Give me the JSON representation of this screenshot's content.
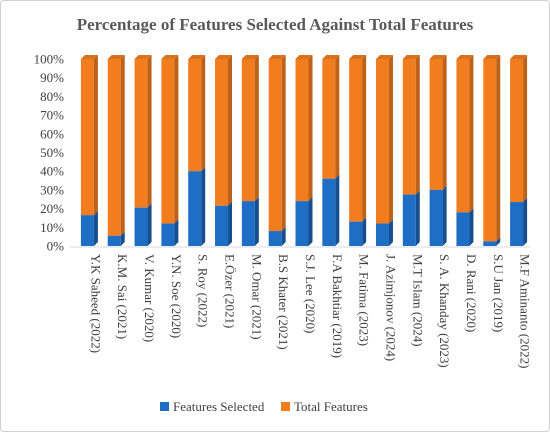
{
  "chart_data": {
    "type": "bar",
    "stacked": true,
    "title": "Percentage of Features Selected Against Total Features",
    "xlabel": "",
    "ylabel": "",
    "ylim": [
      0,
      100
    ],
    "y_ticks": [
      "0%",
      "10%",
      "20%",
      "30%",
      "40%",
      "50%",
      "60%",
      "70%",
      "80%",
      "90%",
      "100%"
    ],
    "categories": [
      "Y.K Saheed (2022)",
      "K.M. Sai (2021)",
      "V. Kumar (2020)",
      "Y.N. Soe (2020)",
      "S. Roy (2022)",
      "E.Özer (2021)",
      "M. Omar (2021)",
      "B.S Khater (2021)",
      "S.J. Lee (2020)",
      "F.A Bakhtiar (2019)",
      "M. Fatima (2023)",
      "J. Azimjonov (2024)",
      "M.T Islam (2024)",
      "S. A. Khanday (2023)",
      "D. Rani (2020)",
      "S.U Jan (2019)",
      "M.F Aminanto (2022)"
    ],
    "series": [
      {
        "name": "Features Selected",
        "values": [
          16.5,
          5.5,
          20.5,
          12,
          40,
          21.5,
          24,
          8,
          24,
          36,
          13,
          12,
          27.5,
          30,
          18,
          2.5,
          23.5
        ]
      },
      {
        "name": "Total Features",
        "values": [
          83.5,
          94.5,
          79.5,
          88,
          60,
          78.5,
          76,
          92,
          76,
          64,
          87,
          88,
          72.5,
          70,
          82,
          97.5,
          76.5
        ]
      }
    ],
    "colors": {
      "Features Selected": "#1f6ec6",
      "Total Features": "#f27d1f"
    },
    "grid": false,
    "legend": "bottom"
  }
}
